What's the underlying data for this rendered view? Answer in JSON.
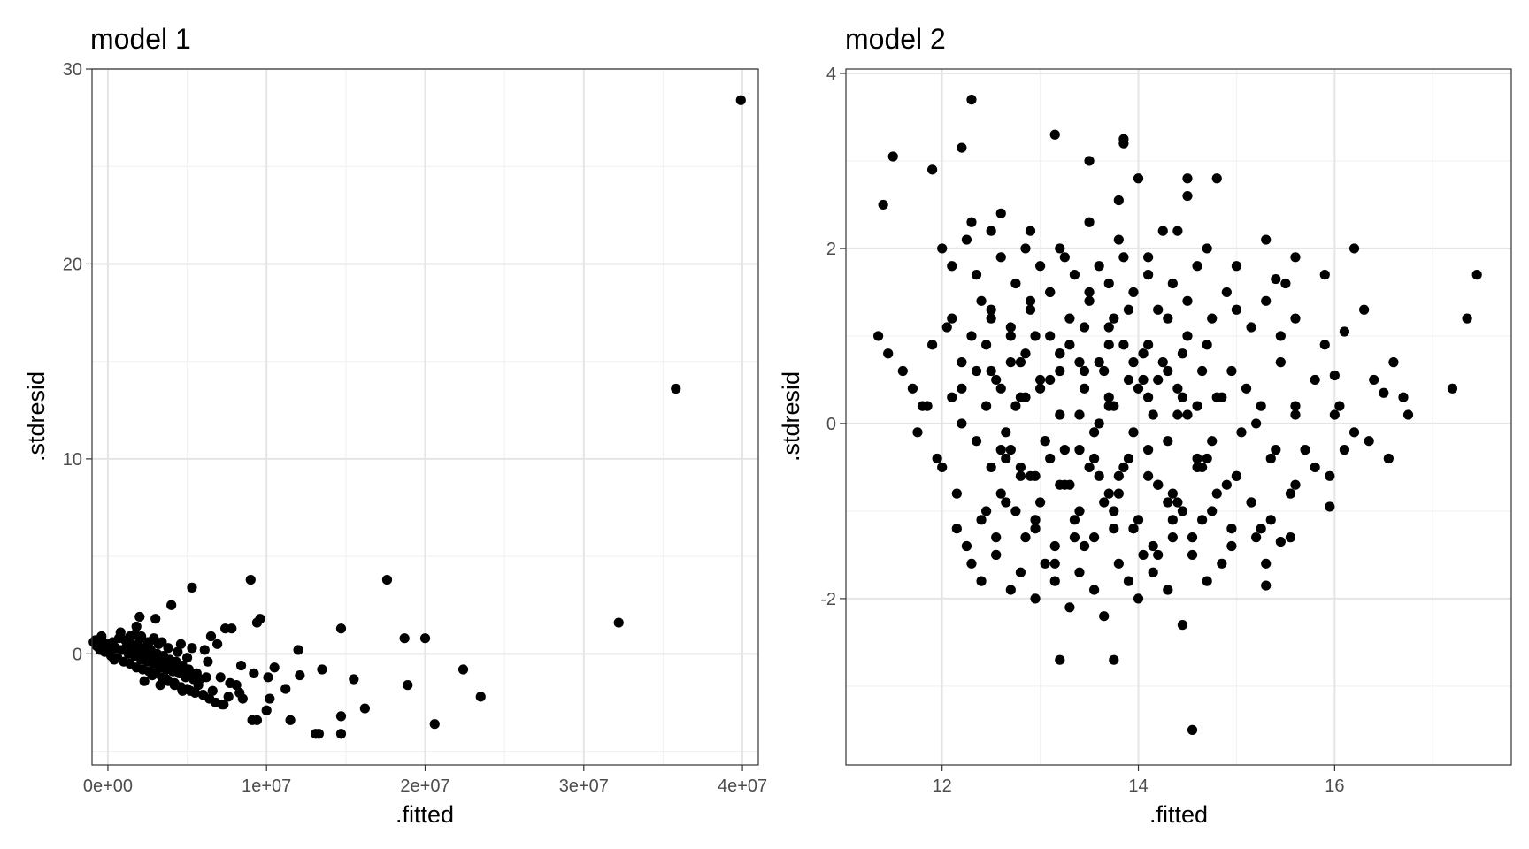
{
  "chart_data": [
    {
      "type": "scatter",
      "title": "model 1",
      "xlabel": ".fitted",
      "ylabel": ".stdresid",
      "xlim": [
        -1000000,
        41000000
      ],
      "ylim": [
        -5.7,
        30
      ],
      "x_ticks": [
        0,
        10000000,
        20000000,
        30000000,
        40000000
      ],
      "x_tick_labels": [
        "0e+00",
        "1e+07",
        "2e+07",
        "3e+07",
        "4e+07"
      ],
      "y_ticks": [
        0,
        10,
        20,
        30
      ],
      "y_tick_labels": [
        "0",
        "10",
        "20",
        "30"
      ],
      "grid": true,
      "point_color": "#000000",
      "points": {
        "x": [
          39900000,
          35800000,
          32200000,
          17600000,
          18700000,
          20000000,
          22400000,
          23500000,
          20600000,
          18900000,
          14700000,
          14700000,
          13300000,
          13100000,
          16200000,
          15500000,
          14700000,
          13500000,
          12100000,
          11500000,
          11200000,
          10200000,
          10100000,
          10000000,
          9400000,
          9100000,
          8500000,
          8100000,
          7600000,
          7200000,
          12000000,
          10500000,
          9000000,
          9600000,
          9400000,
          5300000,
          4000000,
          3000000,
          2000000,
          1800000,
          7400000,
          7800000,
          6500000,
          6100000,
          6900000,
          8400000,
          9200000,
          8300000,
          7700000,
          7100000,
          6600000,
          5700000,
          5400000,
          4900000,
          4500000,
          4100000,
          3700000,
          3300000,
          2900000,
          2500000,
          2100000,
          1700000,
          1300000,
          900000,
          500000,
          100000,
          -300000,
          -600000,
          -800000,
          -900000,
          -700000,
          -500000,
          -200000,
          200000,
          600000,
          1000000,
          1400000,
          1800000,
          2200000,
          2600000,
          3000000,
          3400000,
          3800000,
          4200000,
          4600000,
          5000000,
          5500000,
          6000000,
          6400000,
          6800000,
          7300000,
          1200000,
          1600000,
          2000000,
          2400000,
          2800000,
          3200000,
          3600000,
          4000000,
          4400000,
          4800000,
          5200000,
          5800000,
          300000,
          700000,
          1100000,
          1500000,
          1900000,
          2300000,
          2700000,
          3100000,
          3500000,
          3900000,
          4300000,
          4700000,
          5100000,
          5600000,
          6200000,
          800000,
          1400000,
          2000000,
          2600000,
          3200000,
          3800000,
          4400000,
          5000000,
          2300000,
          2800000,
          3300000,
          3700000,
          4200000,
          4700000,
          5200000,
          400000,
          0,
          -400000,
          1700000,
          2100000,
          2500000,
          2900000,
          3400000,
          4600000,
          5300000,
          6300000
        ],
        "y": [
          28.4,
          13.6,
          1.6,
          3.8,
          0.8,
          0.8,
          -0.8,
          -2.2,
          -3.6,
          -1.6,
          1.3,
          -3.2,
          -4.1,
          -4.1,
          -2.8,
          -1.3,
          -4.1,
          -0.8,
          -1.1,
          -3.4,
          -1.8,
          -2.3,
          -1.2,
          -2.9,
          -3.4,
          -3.4,
          -2.3,
          -1.6,
          -2.2,
          -2.6,
          0.2,
          -0.7,
          3.8,
          1.8,
          1.6,
          3.4,
          2.5,
          1.8,
          1.9,
          1.4,
          1.3,
          1.3,
          0.9,
          0.2,
          0.5,
          -0.6,
          -1.0,
          -2.0,
          -1.5,
          -1.2,
          -1.9,
          -1.6,
          -1.3,
          -1.2,
          -1.0,
          -0.9,
          -0.8,
          -0.7,
          -0.5,
          -0.4,
          -0.3,
          -0.1,
          0.0,
          0.2,
          0.3,
          0.5,
          0.6,
          0.7,
          0.7,
          0.6,
          0.4,
          0.2,
          0.1,
          -0.1,
          -0.2,
          -0.4,
          -0.5,
          -0.7,
          -0.8,
          -0.9,
          -1.0,
          -1.2,
          -1.4,
          -1.5,
          -1.7,
          -1.8,
          -2.0,
          -2.1,
          -2.3,
          -2.5,
          -2.6,
          0.4,
          0.3,
          0.1,
          0.0,
          -0.2,
          -0.3,
          -0.5,
          -0.6,
          -0.8,
          -1.0,
          -1.1,
          -1.3,
          0.6,
          0.8,
          0.7,
          0.5,
          0.4,
          0.3,
          0.2,
          0.0,
          -0.1,
          -0.3,
          -0.4,
          -0.6,
          -0.8,
          -1.0,
          -1.2,
          1.1,
          0.9,
          0.8,
          0.6,
          0.5,
          0.3,
          0.1,
          -0.2,
          -1.4,
          -1.1,
          -1.6,
          -1.3,
          -1.6,
          -1.9,
          -1.9,
          -0.3,
          0.2,
          0.9,
          1.0,
          0.9,
          0.6,
          0.8,
          0.6,
          0.5,
          0.3,
          -0.4
        ]
      }
    },
    {
      "type": "scatter",
      "title": "model 2",
      "xlabel": ".fitted",
      "ylabel": ".stdresid",
      "xlim": [
        11.02,
        17.8
      ],
      "ylim": [
        -3.9,
        4.05
      ],
      "x_ticks": [
        12,
        14,
        16
      ],
      "x_tick_labels": [
        "12",
        "14",
        "16"
      ],
      "y_ticks": [
        -2,
        0,
        2,
        4
      ],
      "y_tick_labels": [
        "-2",
        "0",
        "2",
        "4"
      ],
      "grid": true,
      "point_color": "#000000",
      "points": {
        "x": [
          12.3,
          11.5,
          12.2,
          11.9,
          11.4,
          13.15,
          13.85,
          13.85,
          13.5,
          13.8,
          14.0,
          14.25,
          14.5,
          14.5,
          14.8,
          15.5,
          17.45,
          17.35,
          17.2,
          15.9,
          16.1,
          16.6,
          16.75,
          16.5,
          16.3,
          16.0,
          16.1,
          15.95,
          15.6,
          15.55,
          15.3,
          15.3,
          15.45,
          15.4,
          14.55,
          13.2,
          13.75,
          15.2,
          16.35,
          11.35,
          11.45,
          11.6,
          11.7,
          11.8,
          11.75,
          11.9,
          12.05,
          11.95,
          12.1,
          12.2,
          12.15,
          12.4,
          12.5,
          12.45,
          12.55,
          12.6,
          12.7,
          12.65,
          12.75,
          12.85,
          12.8,
          12.9,
          12.95,
          13.0,
          13.05,
          13.1,
          13.2,
          13.25,
          13.3,
          13.35,
          13.4,
          13.45,
          13.55,
          13.6,
          13.65,
          13.7,
          13.75,
          13.8,
          13.9,
          13.95,
          14.05,
          14.1,
          14.15,
          14.2,
          14.3,
          14.35,
          14.4,
          14.45,
          14.6,
          14.65,
          14.7,
          14.75,
          14.85,
          14.9,
          14.95,
          15.05,
          15.1,
          15.15,
          15.25,
          15.35,
          15.45,
          15.6,
          15.7,
          15.8,
          15.95,
          16.05,
          16.2,
          16.4,
          16.55,
          16.7,
          12.0,
          12.1,
          12.25,
          12.35,
          12.5,
          12.6,
          12.75,
          12.85,
          13.0,
          13.1,
          13.25,
          13.35,
          13.5,
          13.6,
          13.7,
          13.85,
          13.95,
          14.1,
          14.2,
          14.35,
          14.5,
          14.6,
          14.75,
          14.9,
          15.0,
          15.15,
          15.3,
          15.45,
          15.6,
          12.3,
          12.4,
          12.55,
          12.7,
          12.8,
          12.95,
          13.05,
          13.15,
          13.3,
          13.4,
          13.55,
          13.65,
          13.8,
          13.9,
          14.0,
          14.15,
          14.3,
          14.45,
          14.55,
          14.7,
          14.85,
          12.2,
          12.45,
          12.65,
          12.85,
          13.05,
          13.2,
          13.4,
          13.6,
          13.75,
          13.95,
          14.1,
          14.3,
          14.5,
          14.7,
          12.5,
          12.7,
          12.9,
          13.1,
          13.3,
          13.5,
          13.7,
          13.9,
          14.1,
          14.3,
          12.35,
          12.6,
          12.8,
          13.0,
          13.2,
          13.45,
          13.65,
          13.85,
          14.05,
          14.25,
          14.45,
          14.65,
          12.15,
          12.25,
          12.4,
          12.55,
          12.75,
          12.95,
          13.15,
          13.35,
          13.55,
          13.75,
          13.95,
          14.15,
          14.35,
          14.55,
          14.75,
          14.95,
          15.15,
          15.35,
          15.55,
          11.85,
          12.0,
          12.2,
          12.35,
          12.5,
          12.65,
          12.8,
          12.95,
          13.1,
          13.25,
          13.4,
          13.55,
          13.7,
          13.85,
          14.0,
          14.2,
          14.4,
          14.6,
          14.8,
          15.0,
          15.2,
          15.4,
          15.6,
          15.8,
          16.0,
          12.1,
          12.3,
          12.5,
          12.7,
          12.9,
          13.1,
          13.3,
          13.5,
          13.7,
          13.9,
          14.1,
          14.3,
          14.5,
          12.6,
          12.8,
          13.0,
          13.2,
          13.4,
          13.6,
          13.8,
          14.0,
          14.2,
          14.4,
          14.6,
          14.8,
          15.0,
          12.45,
          12.7,
          12.95,
          13.2,
          13.45,
          13.7,
          13.95,
          14.2,
          14.45,
          12.55,
          12.85,
          13.15,
          13.45,
          13.75,
          14.05,
          14.35,
          14.65,
          14.95,
          15.25,
          12.3,
          12.6,
          12.9,
          13.2,
          13.5,
          13.8,
          14.1,
          14.4,
          14.7,
          15.0,
          15.3,
          15.6,
          15.9,
          16.2
        ],
        "y": [
          3.7,
          3.05,
          3.15,
          2.9,
          2.5,
          3.3,
          3.2,
          3.25,
          3.0,
          2.55,
          2.8,
          2.2,
          2.8,
          2.6,
          2.8,
          1.6,
          1.7,
          1.2,
          0.4,
          0.9,
          1.05,
          0.7,
          0.1,
          0.35,
          1.3,
          0.55,
          -0.3,
          -0.95,
          -0.7,
          -1.3,
          -1.85,
          -1.6,
          -1.35,
          1.65,
          -3.5,
          -2.7,
          -2.7,
          -1.3,
          -0.2,
          1.0,
          0.8,
          0.6,
          0.4,
          0.2,
          -0.1,
          0.9,
          1.1,
          -0.4,
          0.3,
          0.7,
          -0.8,
          1.4,
          1.2,
          -1.0,
          0.5,
          -0.3,
          1.0,
          -0.9,
          0.2,
          0.8,
          -0.5,
          1.3,
          -1.1,
          0.4,
          -0.2,
          1.5,
          0.6,
          -0.7,
          0.9,
          -1.3,
          0.1,
          1.1,
          -0.4,
          0.7,
          -0.9,
          0.3,
          1.2,
          -0.6,
          0.5,
          -1.2,
          0.8,
          -0.3,
          0.1,
          -1.5,
          0.6,
          -0.8,
          0.4,
          -1.0,
          0.2,
          -0.5,
          0.9,
          -0.2,
          0.3,
          -0.7,
          0.6,
          -0.1,
          0.4,
          -0.9,
          0.2,
          -0.4,
          0.7,
          0.1,
          -0.3,
          0.5,
          -0.6,
          0.2,
          -0.1,
          0.5,
          -0.4,
          0.3,
          2.0,
          1.8,
          2.1,
          1.7,
          2.2,
          1.9,
          1.6,
          2.0,
          1.8,
          1.5,
          1.9,
          1.7,
          1.4,
          1.8,
          1.6,
          1.9,
          1.5,
          1.7,
          1.3,
          1.6,
          1.4,
          1.8,
          1.2,
          1.5,
          1.3,
          1.1,
          1.4,
          1.0,
          1.2,
          -1.6,
          -1.8,
          -1.5,
          -1.9,
          -1.7,
          -2.0,
          -1.6,
          -1.8,
          -2.1,
          -1.7,
          -1.9,
          -2.2,
          -1.6,
          -1.8,
          -2.0,
          -1.7,
          -1.9,
          -2.3,
          -1.5,
          -1.8,
          -1.6,
          0.0,
          0.2,
          -0.1,
          0.3,
          -0.2,
          0.1,
          -0.3,
          0.0,
          0.2,
          -0.1,
          0.3,
          -0.2,
          0.1,
          -0.4,
          -0.5,
          -0.3,
          -0.6,
          -0.4,
          -0.7,
          -0.5,
          -0.8,
          -0.4,
          -0.6,
          -0.9,
          0.6,
          0.4,
          0.7,
          0.5,
          0.8,
          0.4,
          0.6,
          0.9,
          0.5,
          0.7,
          0.3,
          0.6,
          -1.2,
          -1.4,
          -1.1,
          -1.3,
          -1.0,
          -1.2,
          -1.4,
          -1.1,
          -1.3,
          -1.0,
          -1.2,
          -1.4,
          -1.1,
          -1.3,
          -1.0,
          -1.2,
          -0.9,
          -1.1,
          -0.8,
          0.2,
          -0.5,
          0.4,
          -0.2,
          0.6,
          -0.4,
          0.3,
          -0.6,
          0.5,
          -0.3,
          0.7,
          -0.1,
          0.2,
          -0.5,
          0.4,
          -0.7,
          0.1,
          -0.4,
          0.3,
          -0.6,
          0.0,
          -0.3,
          0.2,
          -0.5,
          0.1,
          1.2,
          1.0,
          1.3,
          1.1,
          1.4,
          1.0,
          1.2,
          1.5,
          1.1,
          1.3,
          0.9,
          1.2,
          1.0,
          -0.8,
          -0.6,
          -0.9,
          -0.7,
          -1.0,
          -0.6,
          -0.8,
          -1.1,
          -0.7,
          -0.9,
          -0.5,
          -0.8,
          -0.6,
          0.9,
          0.7,
          1.0,
          0.8,
          0.6,
          0.9,
          0.7,
          0.5,
          0.8,
          -1.5,
          -1.3,
          -1.6,
          -1.4,
          -1.2,
          -1.5,
          -1.3,
          -1.1,
          -1.4,
          -1.2,
          2.3,
          2.4,
          2.2,
          2.0,
          2.3,
          2.1,
          1.9,
          2.2,
          2.0,
          1.8,
          2.1,
          1.9,
          1.7,
          2.0
        ]
      }
    }
  ]
}
